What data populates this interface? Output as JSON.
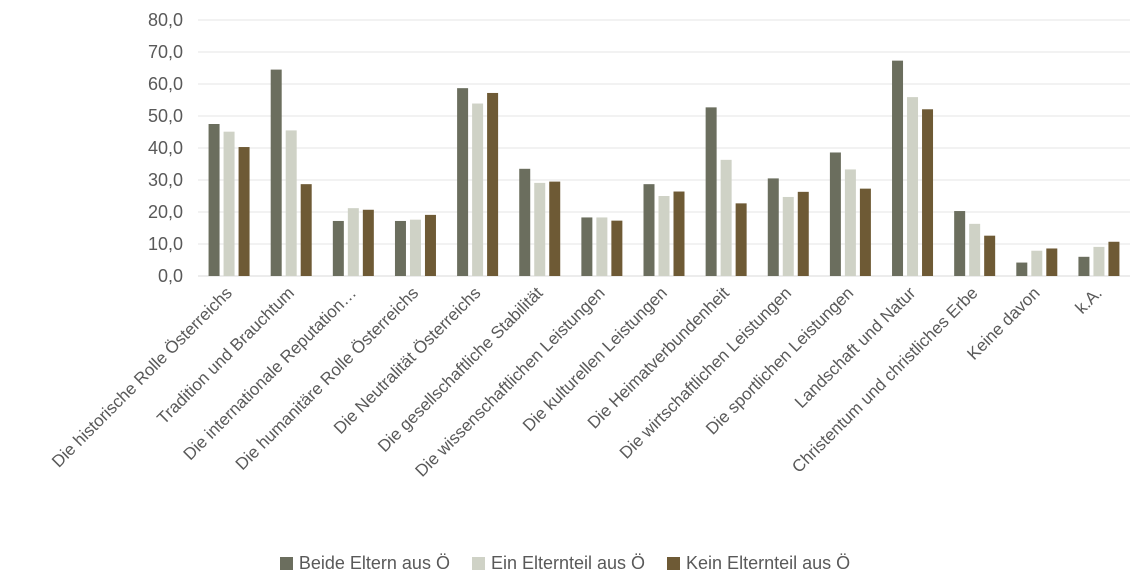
{
  "chart_data": {
    "type": "bar",
    "title": "",
    "xlabel": "",
    "ylabel": "",
    "ylim": [
      0,
      80
    ],
    "yticks": [
      "0,0",
      "10,0",
      "20,0",
      "30,0",
      "40,0",
      "50,0",
      "60,0",
      "70,0",
      "80,0"
    ],
    "grid": true,
    "legend_position": "bottom",
    "categories": [
      "Die historische Rolle Österreichs",
      "Tradition und Brauchtum",
      "Die internationale Reputation…",
      "Die humanitäre Rolle Österreichs",
      "Die Neutralität Österreichs",
      "Die gesellschaftliche Stabilität",
      "Die wissenschaftlichen Leistungen",
      "Die kulturellen Leistungen",
      "Die Heimatverbundenheit",
      "Die wirtschaftlichen Leistungen",
      "Die sportlichen Leistungen",
      "Landschaft und Natur",
      "Christentum und christliches Erbe",
      "Keine davon",
      "k.A."
    ],
    "series": [
      {
        "name": "Beide Eltern aus Ö",
        "color": "#6b6e5e",
        "values": [
          47.5,
          64.5,
          17.2,
          17.2,
          58.7,
          33.5,
          18.3,
          28.7,
          52.7,
          30.5,
          38.6,
          67.3,
          20.3,
          4.2,
          6.0
        ]
      },
      {
        "name": "Ein Elternteil aus Ö",
        "color": "#cfd2c6",
        "values": [
          45.1,
          45.5,
          21.2,
          17.6,
          53.9,
          29.1,
          18.3,
          25.0,
          36.3,
          24.7,
          33.3,
          55.9,
          16.3,
          7.9,
          9.1
        ]
      },
      {
        "name": "Kein Elternteil aus Ö",
        "color": "#6e5a35",
        "values": [
          40.3,
          28.7,
          20.7,
          19.1,
          57.2,
          29.5,
          17.3,
          26.4,
          22.7,
          26.3,
          27.3,
          52.1,
          12.6,
          8.6,
          10.7
        ]
      }
    ]
  }
}
